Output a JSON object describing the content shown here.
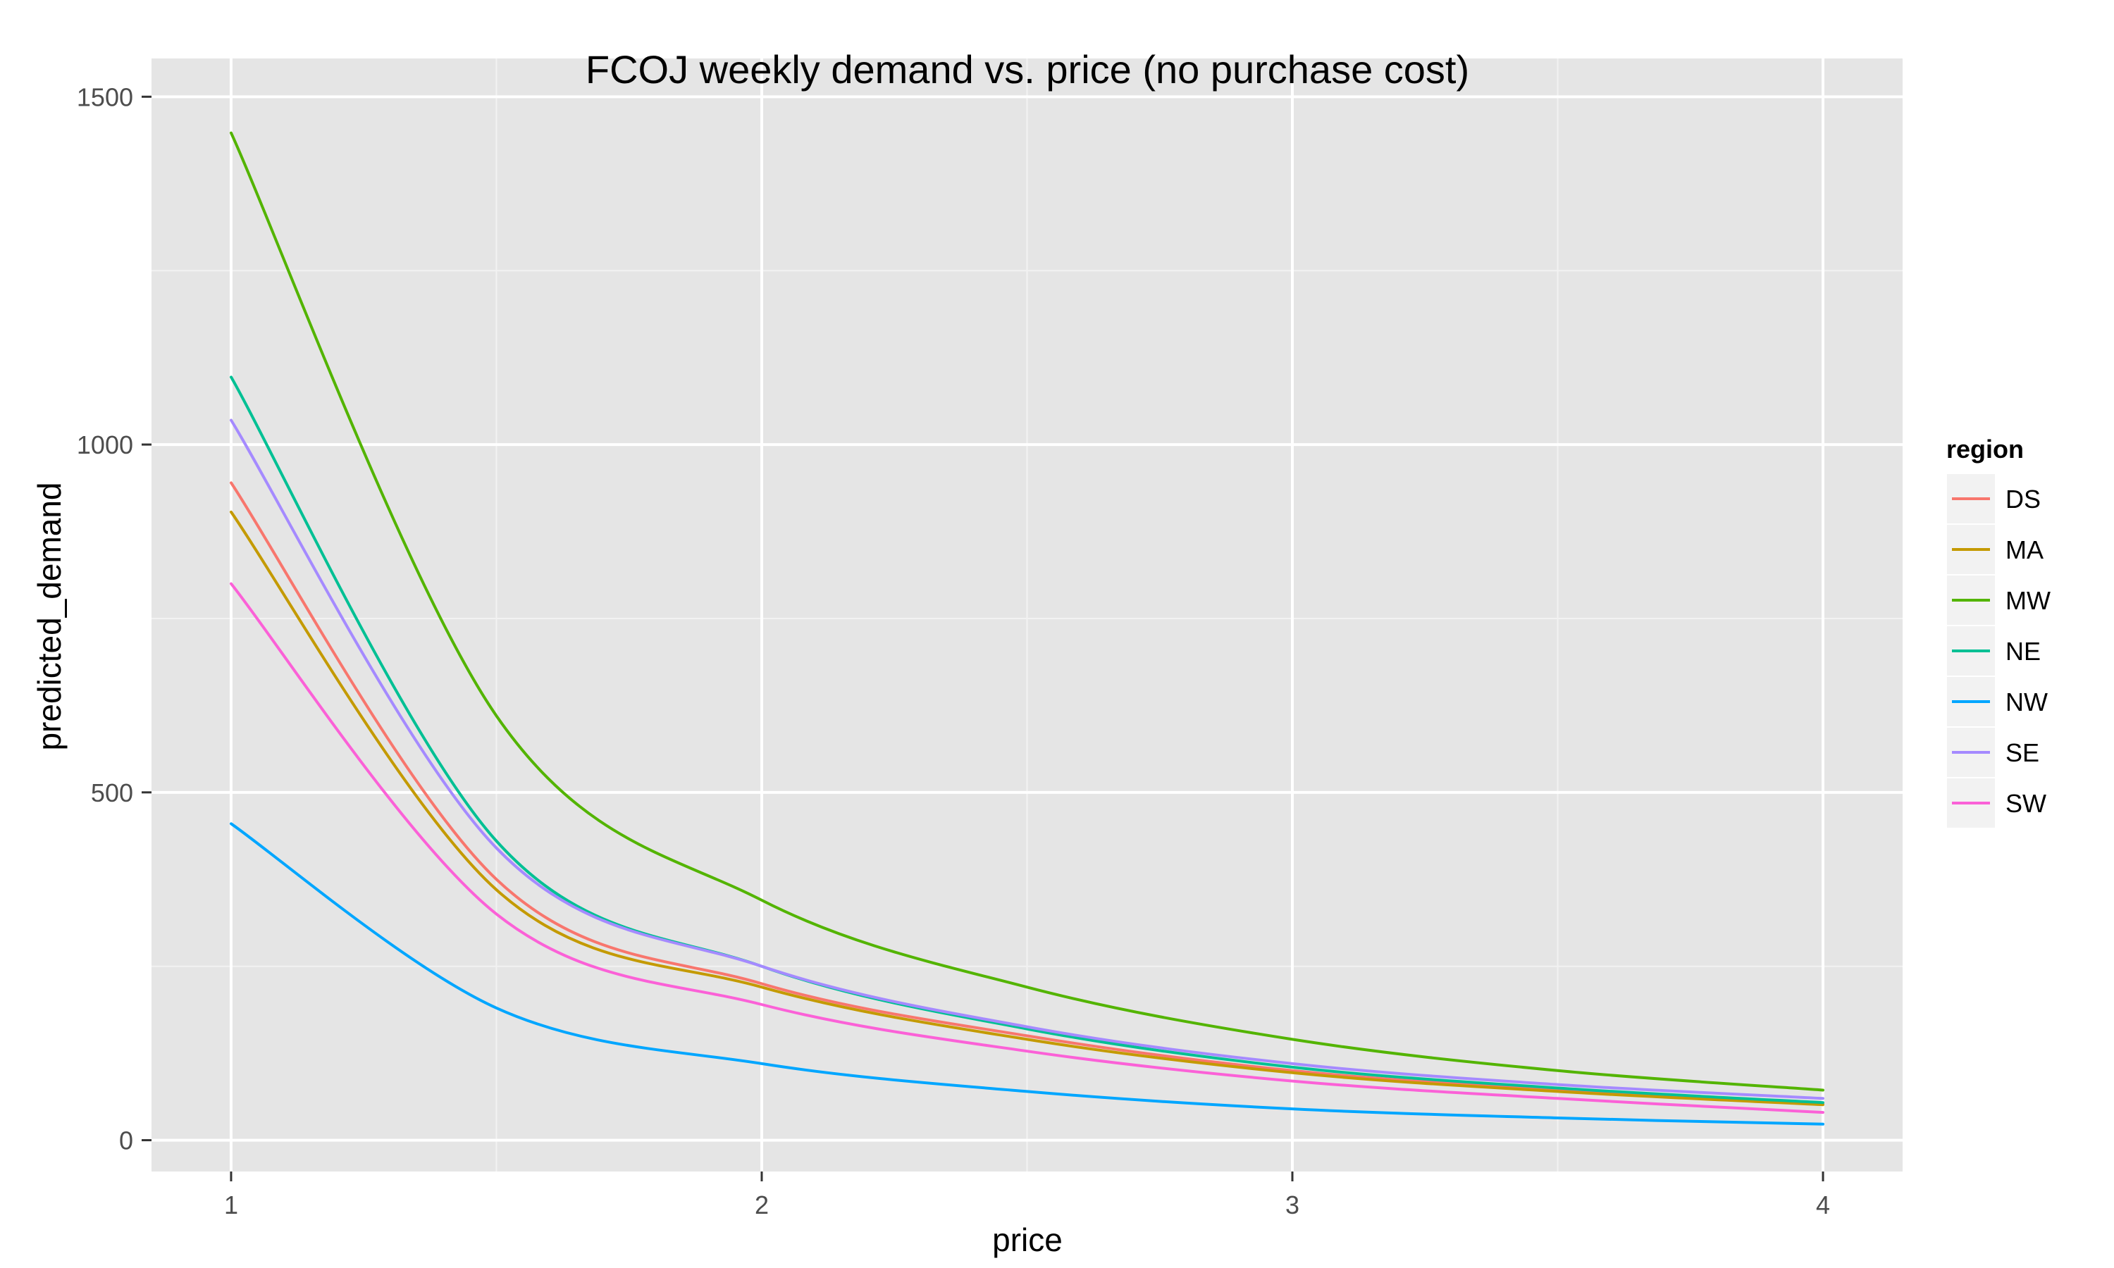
{
  "chart_data": {
    "type": "line",
    "title": "FCOJ weekly demand vs. price (no purchase cost)",
    "xlabel": "price",
    "ylabel": "predicted_demand",
    "xlim": [
      0.85,
      4.15
    ],
    "ylim": [
      -45,
      1555
    ],
    "x_ticks": [
      1,
      2,
      3,
      4
    ],
    "x_tick_labels": [
      "1",
      "2",
      "3",
      "4"
    ],
    "y_ticks": [
      0,
      500,
      1000,
      1500
    ],
    "y_tick_labels": [
      "0",
      "500",
      "1000",
      "1500"
    ],
    "x_minor_ticks": [
      1.5,
      2.5,
      3.5
    ],
    "y_minor_ticks": [
      250,
      750,
      1250
    ],
    "grid": true,
    "background": "#e5e5e5",
    "legend": {
      "title": "region",
      "placement": "right"
    },
    "x": [
      1.0,
      1.5,
      2.0,
      2.5,
      3.0,
      3.5,
      4.0
    ],
    "series": [
      {
        "name": "DS",
        "color": "#f8766d",
        "values": [
          945,
          375,
          225,
          150,
          100,
          72,
          52
        ]
      },
      {
        "name": "MA",
        "color": "#c49a00",
        "values": [
          903,
          360,
          220,
          145,
          97,
          70,
          51
        ]
      },
      {
        "name": "MW",
        "color": "#53b400",
        "values": [
          1448,
          610,
          345,
          220,
          145,
          100,
          72
        ]
      },
      {
        "name": "NE",
        "color": "#00c094",
        "values": [
          1097,
          430,
          250,
          160,
          105,
          75,
          54
        ]
      },
      {
        "name": "NW",
        "color": "#00a6ff",
        "values": [
          455,
          190,
          110,
          70,
          45,
          32,
          23
        ]
      },
      {
        "name": "SE",
        "color": "#a58aff",
        "values": [
          1035,
          420,
          250,
          163,
          110,
          80,
          60
        ]
      },
      {
        "name": "SW",
        "color": "#fb61d7",
        "values": [
          800,
          325,
          195,
          128,
          85,
          60,
          40
        ]
      }
    ]
  }
}
